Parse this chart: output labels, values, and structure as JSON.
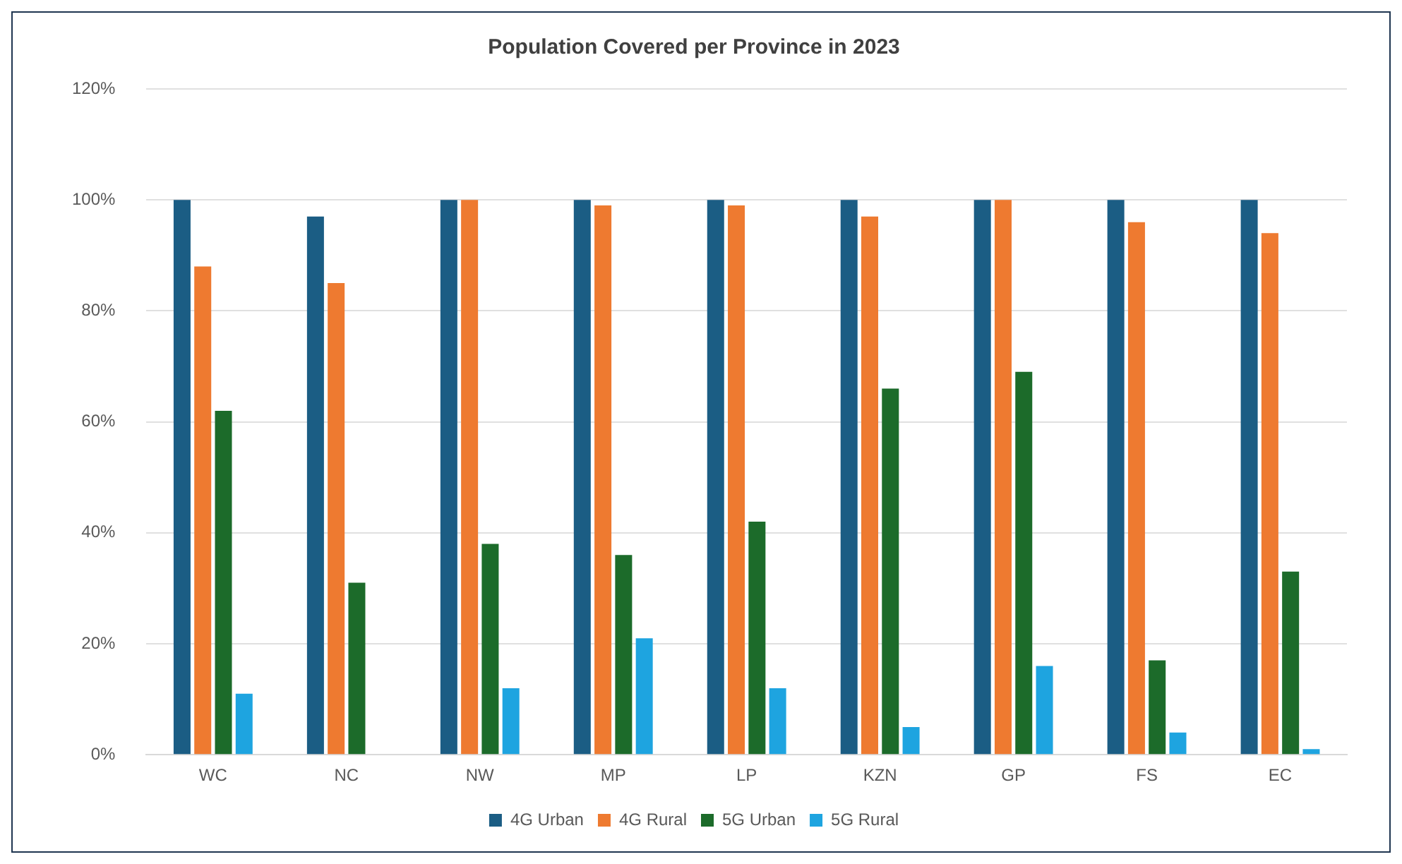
{
  "chart_data": {
    "type": "bar",
    "title": "Population Covered per Province in 2023",
    "categories": [
      "WC",
      "NC",
      "NW",
      "MP",
      "LP",
      "KZN",
      "GP",
      "FS",
      "EC"
    ],
    "series": [
      {
        "name": "4G Urban",
        "color": "#1b5d84",
        "values": [
          100,
          97,
          100,
          100,
          100,
          100,
          100,
          100,
          100
        ]
      },
      {
        "name": "4G Rural",
        "color": "#ee7a30",
        "values": [
          88,
          85,
          100,
          99,
          99,
          97,
          100,
          96,
          94
        ]
      },
      {
        "name": "5G Urban",
        "color": "#1c6b2a",
        "values": [
          62,
          31,
          38,
          36,
          42,
          66,
          69,
          17,
          33
        ]
      },
      {
        "name": "5G Rural",
        "color": "#1ea4e0",
        "values": [
          11,
          0,
          12,
          21,
          12,
          5,
          16,
          4,
          1
        ]
      }
    ],
    "ylim": [
      0,
      120
    ],
    "yticks": [
      {
        "value": 0,
        "label": "0%"
      },
      {
        "value": 20,
        "label": "20%"
      },
      {
        "value": 40,
        "label": "40%"
      },
      {
        "value": 60,
        "label": "60%"
      },
      {
        "value": 80,
        "label": "80%"
      },
      {
        "value": 100,
        "label": "100%"
      },
      {
        "value": 120,
        "label": "120%"
      }
    ],
    "grid": "y",
    "legend": "bottom"
  }
}
